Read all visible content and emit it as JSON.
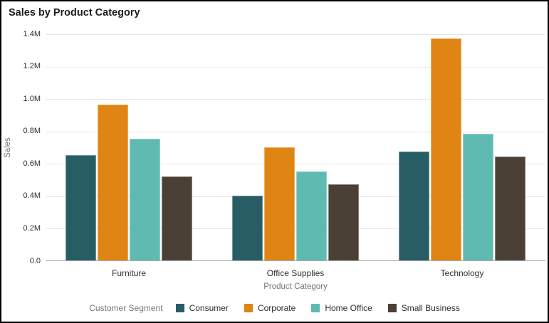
{
  "window": {
    "background": "#ffffff",
    "border_color": "#000000"
  },
  "chart_data": {
    "type": "bar",
    "title": "Sales by Product Category",
    "xlabel": "Product Category",
    "ylabel": "Sales",
    "categories": [
      "Furniture",
      "Office Supplies",
      "Technology"
    ],
    "series": [
      {
        "name": "Consumer",
        "color": "#275E66",
        "values": [
          0.65,
          0.4,
          0.67
        ]
      },
      {
        "name": "Corporate",
        "color": "#E08514",
        "values": [
          0.96,
          0.7,
          1.37
        ]
      },
      {
        "name": "Home Office",
        "color": "#5FBAB2",
        "values": [
          0.75,
          0.55,
          0.78
        ]
      },
      {
        "name": "Small Business",
        "color": "#4A4036",
        "values": [
          0.52,
          0.47,
          0.64
        ]
      }
    ],
    "value_unit": "M",
    "ylim": [
      0,
      1.4
    ],
    "ytick_step": 0.2,
    "ytick_labels": [
      "0.0",
      "0.2M",
      "0.4M",
      "0.6M",
      "0.8M",
      "1.0M",
      "1.2M",
      "1.4M"
    ],
    "grid": true,
    "legend_title": "Customer Segment",
    "legend_position": "bottom"
  },
  "style": {
    "gridline_color": "#e7e7ea",
    "axis_line_color": "#aaaaaa",
    "title_color": "#1c1c1c",
    "tick_label_color": "#2e2e2e",
    "axis_title_color": "#767676"
  }
}
